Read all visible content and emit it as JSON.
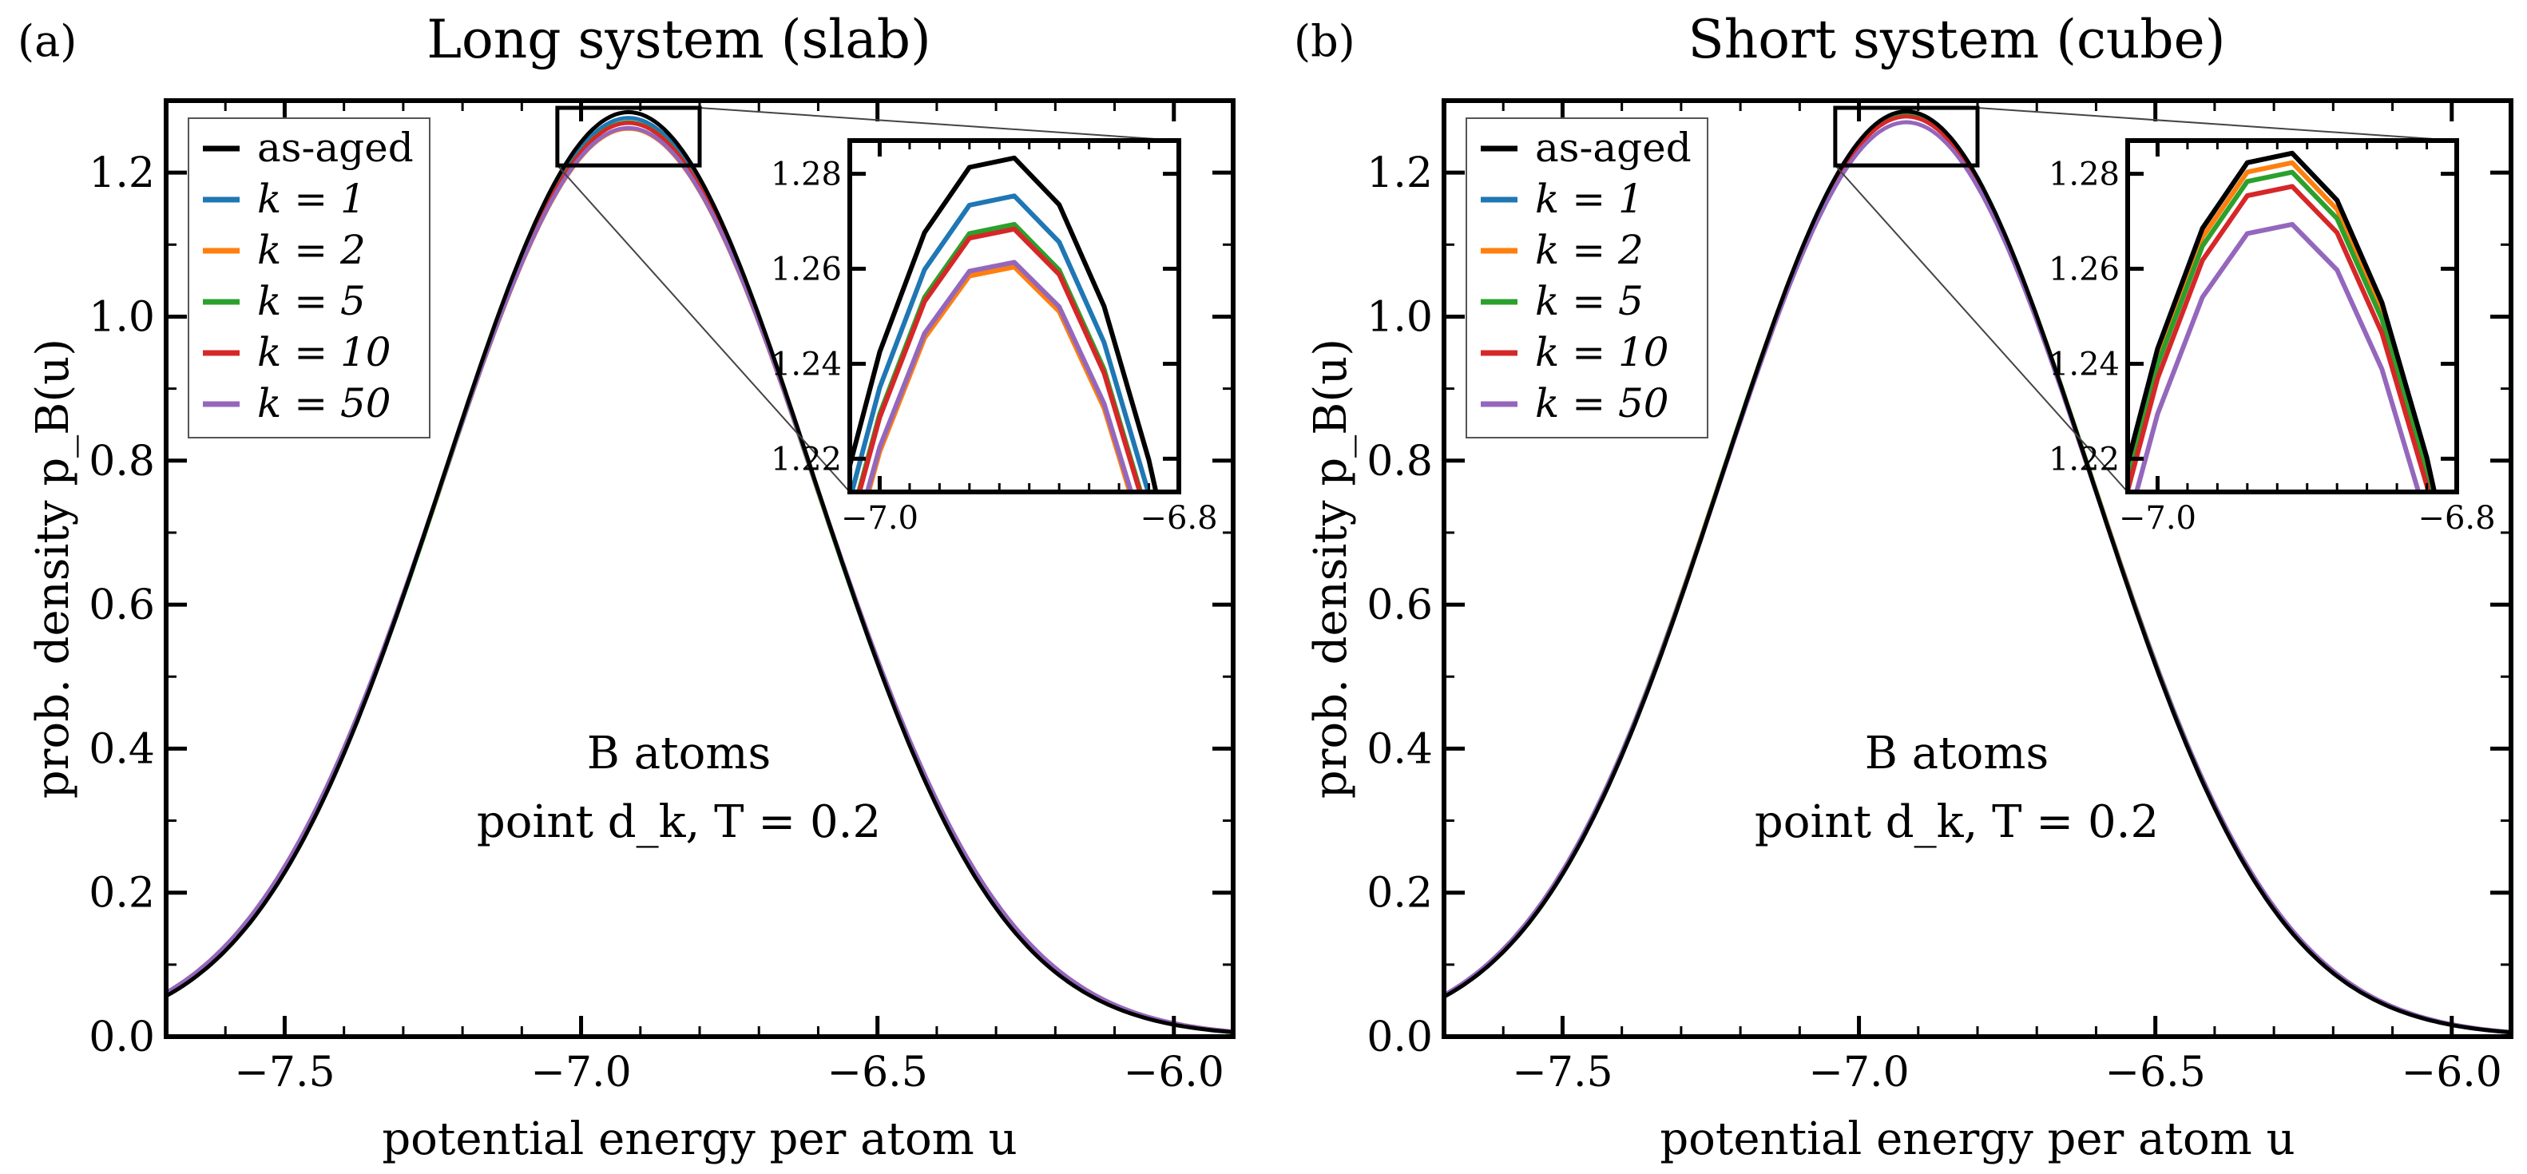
{
  "colors": {
    "as_aged": "#000000",
    "k1": "#1f77b4",
    "k2": "#ff7f0e",
    "k5": "#2ca02c",
    "k10": "#d62728",
    "k50": "#9467bd"
  },
  "chart_data": [
    {
      "type": "line",
      "panel_label": "(a)",
      "title": "Long system (slab)",
      "xlabel": "potential energy per atom u",
      "ylabel": "prob. density p_B(u)",
      "xlim": [
        -7.7,
        -5.9
      ],
      "ylim": [
        0.0,
        1.3
      ],
      "xticks": [
        -7.5,
        -7.0,
        -6.5,
        -6.0
      ],
      "xtick_labels": [
        "−7.5",
        "−7.0",
        "−6.5",
        "−6.0"
      ],
      "yticks": [
        0.0,
        0.2,
        0.4,
        0.6,
        0.8,
        1.0,
        1.2
      ],
      "ytick_labels": [
        "0.0",
        "0.2",
        "0.4",
        "0.6",
        "0.8",
        "1.0",
        "1.2"
      ],
      "legend_position": "top-left",
      "annotation_lines": [
        "B atoms",
        "point d_k, T = 0.2"
      ],
      "curve_model": {
        "form": "gaussian",
        "center": -6.92
      },
      "series": [
        {
          "name": "as-aged",
          "color_key": "as_aged",
          "peak": 1.284,
          "sigma": 0.312
        },
        {
          "name": "k = 1",
          "color_key": "k1",
          "peak": 1.276,
          "sigma": 0.313
        },
        {
          "name": "k = 2",
          "color_key": "k2",
          "peak": 1.261,
          "sigma": 0.317
        },
        {
          "name": "k = 5",
          "color_key": "k5",
          "peak": 1.27,
          "sigma": 0.314
        },
        {
          "name": "k = 10",
          "color_key": "k10",
          "peak": 1.269,
          "sigma": 0.315
        },
        {
          "name": "k = 50",
          "color_key": "k50",
          "peak": 1.262,
          "sigma": 0.317
        }
      ],
      "inset": {
        "position": "top-right",
        "xlim": [
          -7.02,
          -6.8
        ],
        "ylim": [
          1.213,
          1.287
        ],
        "xticks": [
          -7.0,
          -6.8
        ],
        "xtick_labels": [
          "−7.0",
          "−6.8"
        ],
        "yticks": [
          1.22,
          1.24,
          1.26,
          1.28
        ],
        "ytick_labels": [
          "1.22",
          "1.24",
          "1.26",
          "1.28"
        ],
        "zoom_box": {
          "x": [
            -7.04,
            -6.8
          ],
          "y": [
            1.21,
            1.29
          ]
        }
      }
    },
    {
      "type": "line",
      "panel_label": "(b)",
      "title": "Short system (cube)",
      "xlabel": "potential energy per atom u",
      "ylabel": "prob. density p_B(u)",
      "xlim": [
        -7.7,
        -5.9
      ],
      "ylim": [
        0.0,
        1.3
      ],
      "xticks": [
        -7.5,
        -7.0,
        -6.5,
        -6.0
      ],
      "xtick_labels": [
        "−7.5",
        "−7.0",
        "−6.5",
        "−6.0"
      ],
      "yticks": [
        0.0,
        0.2,
        0.4,
        0.6,
        0.8,
        1.0,
        1.2
      ],
      "ytick_labels": [
        "0.0",
        "0.2",
        "0.4",
        "0.6",
        "0.8",
        "1.0",
        "1.2"
      ],
      "legend_position": "top-left",
      "annotation_lines": [
        "B atoms",
        "point d_k, T = 0.2"
      ],
      "curve_model": {
        "form": "gaussian",
        "center": -6.92
      },
      "series": [
        {
          "name": "as-aged",
          "color_key": "as_aged",
          "peak": 1.285,
          "sigma": 0.311
        },
        {
          "name": "k = 1",
          "color_key": "k1",
          "peak": 1.285,
          "sigma": 0.311
        },
        {
          "name": "k = 2",
          "color_key": "k2",
          "peak": 1.283,
          "sigma": 0.312
        },
        {
          "name": "k = 5",
          "color_key": "k5",
          "peak": 1.281,
          "sigma": 0.313
        },
        {
          "name": "k = 10",
          "color_key": "k10",
          "peak": 1.278,
          "sigma": 0.313
        },
        {
          "name": "k = 50",
          "color_key": "k50",
          "peak": 1.27,
          "sigma": 0.314
        }
      ],
      "inset": {
        "position": "top-right",
        "xlim": [
          -7.02,
          -6.8
        ],
        "ylim": [
          1.213,
          1.287
        ],
        "xticks": [
          -7.0,
          -6.8
        ],
        "xtick_labels": [
          "−7.0",
          "−6.8"
        ],
        "yticks": [
          1.22,
          1.24,
          1.26,
          1.28
        ],
        "ytick_labels": [
          "1.22",
          "1.24",
          "1.26",
          "1.28"
        ],
        "zoom_box": {
          "x": [
            -7.04,
            -6.8
          ],
          "y": [
            1.21,
            1.29
          ]
        }
      }
    }
  ]
}
